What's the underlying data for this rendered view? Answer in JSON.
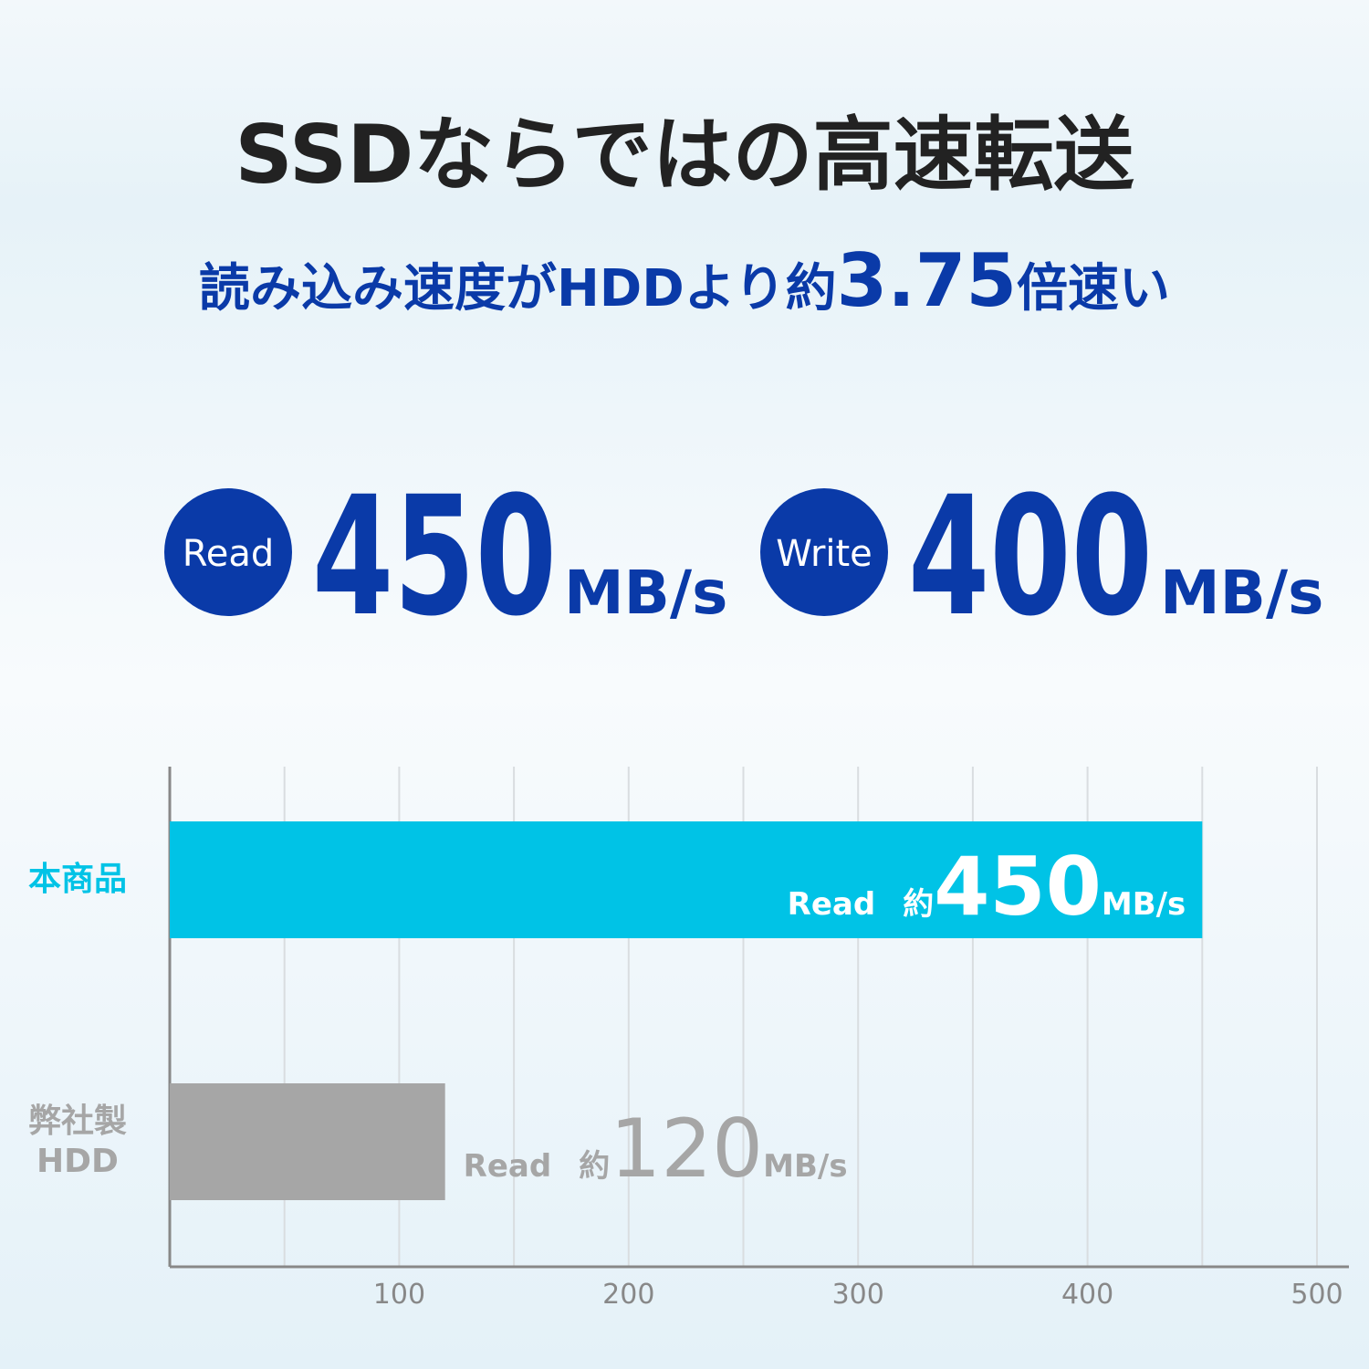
{
  "title": "SSDならではの高速転送",
  "subtitle_parts": [
    "読み込み速度がHDDより約",
    "3.75",
    "倍速い"
  ],
  "specs": [
    {
      "label": "Read",
      "value": 450,
      "unit": "MB/s"
    },
    {
      "label": "Write",
      "value": 400,
      "unit": "MB/s"
    }
  ],
  "chart_data": {
    "type": "bar",
    "orientation": "horizontal",
    "categories": [
      "本商品",
      "弊社製\nHDD"
    ],
    "values": [
      450,
      120
    ],
    "colors": [
      "#00c3e6",
      "#a6a6a6"
    ],
    "value_prefix": [
      "Read",
      "約"
    ],
    "value_unit": "MB/s",
    "xlim": [
      0,
      500
    ],
    "xticks": [
      100,
      200,
      300,
      400,
      500
    ],
    "minor_xticks": [
      50,
      150,
      250,
      350,
      450
    ],
    "grid": true
  }
}
